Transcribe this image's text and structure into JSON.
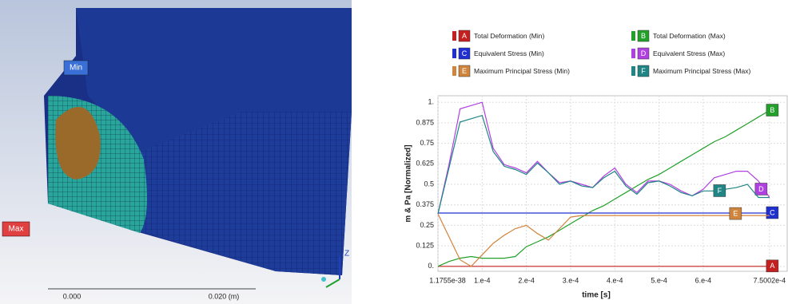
{
  "viewport": {
    "min_label": "Min",
    "max_label": "Max",
    "scale": [
      "0.000",
      "0.020 (m)"
    ],
    "axis": "Z"
  },
  "chart_data": {
    "type": "line",
    "x_label": "time  [s]",
    "y_label": "m & Pa [Normalized]",
    "x": [
      1.1755e-38,
      2.5e-05,
      5e-05,
      7.5e-05,
      0.0001,
      0.000125,
      0.00015,
      0.000175,
      0.0002,
      0.000225,
      0.00025,
      0.000275,
      0.0003,
      0.000325,
      0.00035,
      0.000375,
      0.0004,
      0.000425,
      0.00045,
      0.000475,
      0.0005,
      0.000525,
      0.00055,
      0.000575,
      0.0006,
      0.000625,
      0.00065,
      0.000675,
      0.0007,
      0.000725,
      0.00075002
    ],
    "xlim": [
      0,
      0.00079
    ],
    "xticks": [
      {
        "value": 1.1755e-38,
        "label": "1.1755e-38"
      },
      {
        "value": 0.0001,
        "label": "1.e-4"
      },
      {
        "value": 0.0002,
        "label": "2.e-4"
      },
      {
        "value": 0.0003,
        "label": "3.e-4"
      },
      {
        "value": 0.0004,
        "label": "4.e-4"
      },
      {
        "value": 0.0005,
        "label": "5.e-4"
      },
      {
        "value": 0.0006,
        "label": "6.e-4"
      },
      {
        "value": 0.00075002,
        "label": "7.5002e-4"
      }
    ],
    "ylim": [
      -0.03,
      1.04
    ],
    "yticks": [
      {
        "value": 0,
        "label": "0."
      },
      0.125,
      0.25,
      0.375,
      0.5,
      0.625,
      0.75,
      0.875,
      {
        "value": 1,
        "label": "1."
      }
    ],
    "grid": true,
    "series": [
      {
        "letter": "A",
        "name": "Total Deformation (Min)",
        "color": "#c42020",
        "values": [
          0,
          0,
          0,
          0,
          0,
          0,
          0,
          0,
          0,
          0,
          0,
          0,
          0,
          0,
          0,
          0,
          0,
          0,
          0,
          0,
          0,
          0,
          0,
          0,
          0,
          0,
          0,
          0,
          0,
          0,
          0
        ]
      },
      {
        "letter": "B",
        "name": "Total Deformation (Max)",
        "color": "#22a02a",
        "values": [
          0,
          0.03,
          0.05,
          0.06,
          0.05,
          0.05,
          0.05,
          0.06,
          0.12,
          0.15,
          0.18,
          0.22,
          0.26,
          0.3,
          0.34,
          0.37,
          0.41,
          0.45,
          0.49,
          0.53,
          0.56,
          0.6,
          0.64,
          0.68,
          0.72,
          0.76,
          0.79,
          0.83,
          0.87,
          0.91,
          0.95
        ]
      },
      {
        "letter": "C",
        "name": "Equivalent Stress (Min)",
        "color": "#2030d0",
        "values": [
          0.325,
          0.325,
          0.325,
          0.325,
          0.325,
          0.325,
          0.325,
          0.325,
          0.325,
          0.325,
          0.325,
          0.325,
          0.325,
          0.325,
          0.325,
          0.325,
          0.325,
          0.325,
          0.325,
          0.325,
          0.325,
          0.325,
          0.325,
          0.325,
          0.325,
          0.325,
          0.325,
          0.325,
          0.325,
          0.325,
          0.325
        ]
      },
      {
        "letter": "D",
        "name": "Equivalent Stress (Max)",
        "color": "#b040e0",
        "values": [
          0.32,
          0.62,
          0.96,
          0.98,
          1.0,
          0.72,
          0.62,
          0.6,
          0.57,
          0.64,
          0.57,
          0.51,
          0.52,
          0.5,
          0.48,
          0.55,
          0.6,
          0.5,
          0.45,
          0.52,
          0.52,
          0.5,
          0.46,
          0.43,
          0.47,
          0.54,
          0.56,
          0.58,
          0.58,
          0.52,
          0.42
        ]
      },
      {
        "letter": "E",
        "name": "Maximum Principal Stress (Min)",
        "color": "#d0843c",
        "values": [
          0.32,
          0.18,
          0.04,
          0.0,
          0.07,
          0.14,
          0.19,
          0.23,
          0.25,
          0.2,
          0.16,
          0.23,
          0.3,
          0.31,
          0.31,
          0.31,
          0.31,
          0.31,
          0.31,
          0.31,
          0.31,
          0.31,
          0.31,
          0.31,
          0.31,
          0.31,
          0.31,
          0.31,
          0.31,
          0.31,
          0.31
        ]
      },
      {
        "letter": "F",
        "name": "Maximum Principal Stress (Max)",
        "color": "#1f8585",
        "values": [
          0.32,
          0.6,
          0.88,
          0.9,
          0.92,
          0.7,
          0.61,
          0.59,
          0.56,
          0.63,
          0.57,
          0.5,
          0.52,
          0.49,
          0.48,
          0.54,
          0.58,
          0.49,
          0.44,
          0.51,
          0.52,
          0.49,
          0.45,
          0.43,
          0.46,
          0.46,
          0.47,
          0.48,
          0.5,
          0.42,
          0.42
        ]
      }
    ]
  }
}
